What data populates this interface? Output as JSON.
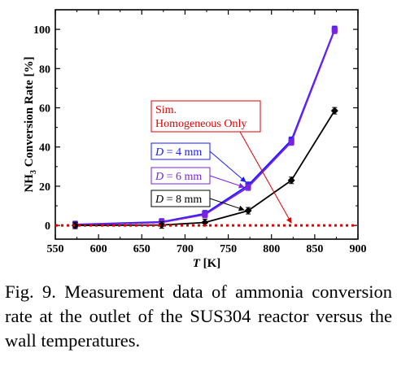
{
  "chart_data": {
    "type": "line",
    "title": "",
    "xlabel": {
      "main": "T",
      "unit": " [K]"
    },
    "ylabel": {
      "prefix": "NH",
      "sub": "3",
      "suffix": " Conversion Rate  [%]"
    },
    "xlim": [
      550,
      900
    ],
    "ylim": [
      -7,
      110
    ],
    "xticks": [
      550,
      600,
      650,
      700,
      750,
      800,
      850,
      900
    ],
    "yticks": [
      0,
      20,
      40,
      60,
      80,
      100
    ],
    "grid": false,
    "series": [
      {
        "name": "D = 4 mm",
        "color": "#1a1aff",
        "marker": "square",
        "x": [
          573,
          673,
          723,
          773,
          823,
          873
        ],
        "y": [
          0.5,
          1.8,
          6.0,
          20.5,
          43.5,
          100.0
        ]
      },
      {
        "name": "D = 6 mm",
        "color": "#7a22e0",
        "marker": "square",
        "x": [
          573,
          673,
          723,
          773,
          823,
          873
        ],
        "y": [
          0.3,
          1.5,
          5.5,
          19.5,
          42.5,
          99.5
        ]
      },
      {
        "name": "D = 8 mm",
        "color": "#000000",
        "marker": "diamond",
        "x": [
          573,
          673,
          723,
          773,
          823,
          873
        ],
        "y": [
          0.0,
          0.2,
          1.5,
          7.5,
          23.0,
          58.5
        ]
      },
      {
        "name": "Sim. Homogeneous Only",
        "color": "#e00000",
        "style": "dotted",
        "x": [
          550,
          900
        ],
        "y": [
          0,
          0
        ]
      }
    ],
    "annotations": [
      {
        "lines": [
          "Sim.",
          "Homogeneous Only"
        ],
        "color": "#e00000"
      },
      {
        "lines": [
          "D = 4 mm"
        ],
        "color": "#1a1aff"
      },
      {
        "lines": [
          "D = 6 mm"
        ],
        "color": "#7a22e0"
      },
      {
        "lines": [
          "D = 8 mm"
        ],
        "color": "#000000"
      }
    ]
  },
  "caption": "Fig.  9.    Measurement  data  of  ammonia conversion rate at the outlet of the SUS304 reactor versus the wall temperatures."
}
